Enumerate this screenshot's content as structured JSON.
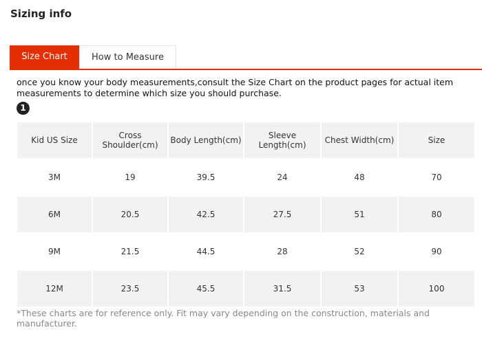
{
  "title": "Sizing info",
  "tabs": [
    {
      "label": "Size Chart",
      "active": true
    },
    {
      "label": "How to Measure",
      "active": false
    }
  ],
  "accent_color": "#e62e04",
  "description": "once you know your body measurements,consult the Size Chart on the product pages for actual item measurements to determine which size you should purchase.",
  "badge": "1",
  "table": {
    "headers": [
      "Kid US Size",
      "Cross Shoulder(cm)",
      "Body Length(cm)",
      "Sleeve Length(cm)",
      "Chest Width(cm)",
      "Size"
    ],
    "rows": [
      [
        "3M",
        "19",
        "39.5",
        "24",
        "48",
        "70"
      ],
      [
        "6M",
        "20.5",
        "42.5",
        "27.5",
        "51",
        "80"
      ],
      [
        "9M",
        "21.5",
        "44.5",
        "28",
        "52",
        "90"
      ],
      [
        "12M",
        "23.5",
        "45.5",
        "31.5",
        "53",
        "100"
      ]
    ]
  },
  "note": "*These charts are for reference only. Fit may vary depending on the construction, materials and manufacturer."
}
